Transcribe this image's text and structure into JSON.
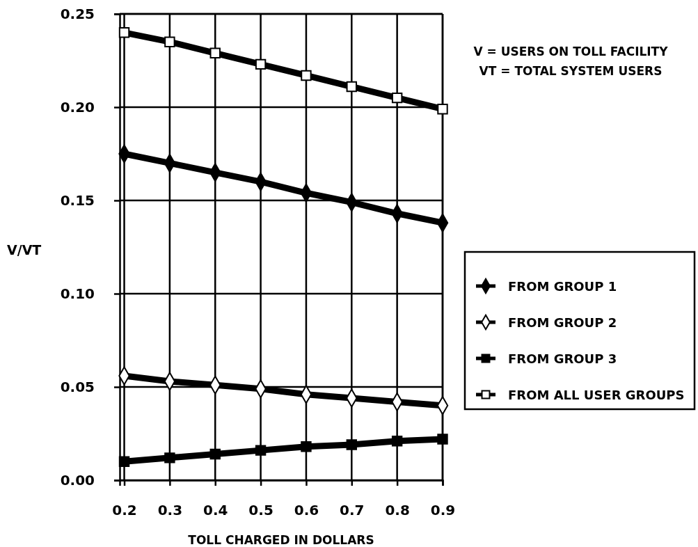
{
  "chart_data": {
    "type": "line",
    "xlabel": "TOLL CHARGED IN DOLLARS",
    "ylabel": "V/VT",
    "annotations": [
      "V = USERS ON TOLL FACILITY",
      "VT = TOTAL SYSTEM USERS"
    ],
    "x": [
      0.2,
      0.3,
      0.4,
      0.5,
      0.6,
      0.7,
      0.8,
      0.9
    ],
    "series": [
      {
        "name": "FROM GROUP 1",
        "color": "#000000",
        "marker": "diamond",
        "values": [
          0.175,
          0.17,
          0.165,
          0.16,
          0.154,
          0.149,
          0.143,
          0.138
        ]
      },
      {
        "name": "FROM GROUP 2",
        "color": "#000000",
        "marker": "diamond",
        "values": [
          0.056,
          0.053,
          0.051,
          0.049,
          0.046,
          0.044,
          0.042,
          0.04
        ]
      },
      {
        "name": "FROM GROUP 3",
        "color": "#000000",
        "marker": "square",
        "values": [
          0.01,
          0.012,
          0.014,
          0.016,
          0.018,
          0.019,
          0.021,
          0.022
        ]
      },
      {
        "name": "FROM ALL USER GROUPS",
        "color": "#000000",
        "marker": "square",
        "values": [
          0.24,
          0.235,
          0.229,
          0.223,
          0.217,
          0.211,
          0.205,
          0.199
        ]
      }
    ],
    "xlim": [
      0.19,
      0.9
    ],
    "xticks": [
      0.2,
      0.3,
      0.4,
      0.5,
      0.6,
      0.7,
      0.8,
      0.9
    ],
    "ylim": [
      0,
      0.25
    ],
    "yticks": [
      {
        "value": 0,
        "label": "0.00"
      },
      {
        "value": 0.05,
        "label": "0.05"
      },
      {
        "value": 0.1,
        "label": "0.10"
      },
      {
        "value": 0.15,
        "label": "0.15"
      },
      {
        "value": 0.2,
        "label": "0.20"
      },
      {
        "value": 0.25,
        "label": "0.25"
      }
    ],
    "grid": true,
    "legend": "right",
    "line_style": "solid"
  }
}
